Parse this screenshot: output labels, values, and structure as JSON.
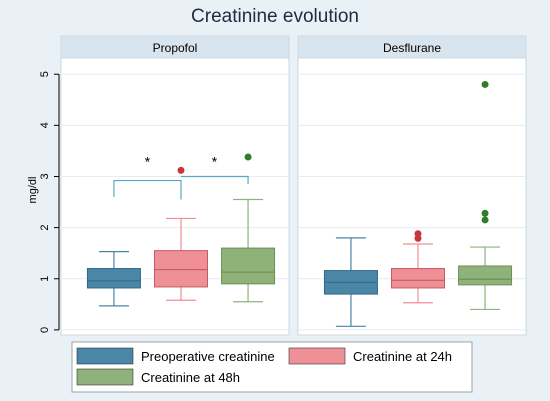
{
  "chart_data": {
    "type": "box",
    "title": "Creatinine evolution",
    "ylabel": "mg/dl",
    "ylim": [
      -0.1,
      5.2
    ],
    "yticks": [
      "0",
      "1",
      "2",
      "3",
      "4",
      "5"
    ],
    "panels": [
      {
        "name": "Propofol",
        "boxes": [
          {
            "series": "Preoperative creatinine",
            "whisker_low": 0.47,
            "q1": 0.82,
            "median": 0.96,
            "q3": 1.2,
            "whisker_high": 1.53,
            "outliers": []
          },
          {
            "series": "Creatinine at 24h",
            "whisker_low": 0.58,
            "q1": 0.84,
            "median": 1.18,
            "q3": 1.55,
            "whisker_high": 2.18,
            "outliers": [
              3.12
            ]
          },
          {
            "series": "Creatinine at 48h",
            "whisker_low": 0.55,
            "q1": 0.9,
            "median": 1.13,
            "q3": 1.6,
            "whisker_high": 2.55,
            "outliers": [
              3.38
            ]
          }
        ],
        "annotations": [
          "*",
          "*"
        ]
      },
      {
        "name": "Desflurane",
        "boxes": [
          {
            "series": "Preoperative creatinine",
            "whisker_low": 0.07,
            "q1": 0.7,
            "median": 0.93,
            "q3": 1.16,
            "whisker_high": 1.8,
            "outliers": []
          },
          {
            "series": "Creatinine at 24h",
            "whisker_low": 0.53,
            "q1": 0.82,
            "median": 0.97,
            "q3": 1.2,
            "whisker_high": 1.68,
            "outliers": [
              1.79,
              1.88
            ]
          },
          {
            "series": "Creatinine at 48h",
            "whisker_low": 0.4,
            "q1": 0.88,
            "median": 0.99,
            "q3": 1.25,
            "whisker_high": 1.62,
            "outliers": [
              2.15,
              2.28,
              4.8
            ]
          }
        ],
        "annotations": []
      }
    ],
    "legend": [
      {
        "name": "Preoperative creatinine",
        "color": "#4a86a6"
      },
      {
        "name": "Creatinine at 24h",
        "color": "#ef8f96"
      },
      {
        "name": "Creatinine at 48h",
        "color": "#8fb27a"
      }
    ],
    "legend_position": "bottom",
    "outlier_colors": [
      "#4a86a6",
      "#c8363d",
      "#2f7d2a"
    ],
    "grid": true
  }
}
